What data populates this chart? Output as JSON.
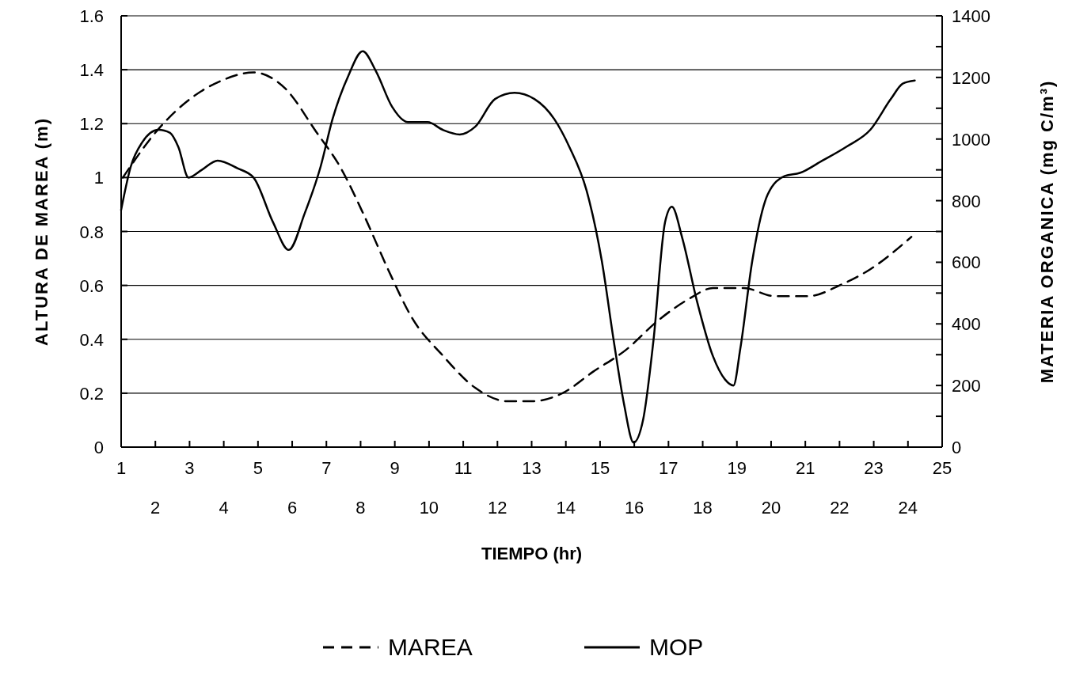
{
  "chart_data": {
    "type": "line",
    "xlabel": "TIEMPO (hr)",
    "ylabel": "ALTURA DE MAREA (m)",
    "y2label": "MATERIA ORGANICA (mg C/m³)",
    "xlim": [
      1,
      25
    ],
    "xticks": [
      1,
      {
        "value": 2,
        "label": null
      },
      3,
      {
        "value": 4,
        "label": null
      },
      5,
      {
        "value": 6,
        "label": null
      },
      7,
      {
        "value": 8,
        "label": null
      },
      9,
      {
        "value": 10,
        "label": null
      },
      11,
      {
        "value": 12,
        "label": null
      },
      13,
      {
        "value": 14,
        "label": null
      },
      15,
      {
        "value": 16,
        "label": null
      },
      17,
      {
        "value": 18,
        "label": null
      },
      19,
      {
        "value": 20,
        "label": null
      },
      21,
      {
        "value": 22,
        "label": null
      },
      23,
      {
        "value": 24,
        "label": null
      },
      25
    ],
    "x2lim": [
      1,
      25
    ],
    "x2ticks": [
      2,
      4,
      6,
      8,
      10,
      12,
      14,
      16,
      18,
      20,
      22,
      24
    ],
    "ylim": [
      0,
      1.6
    ],
    "yticks": [
      0,
      0.2,
      0.4,
      0.6,
      0.8,
      1,
      1.2,
      1.4,
      1.6
    ],
    "y2lim": [
      0,
      1400
    ],
    "y2ticks": [
      0,
      {
        "value": 100,
        "label": null
      },
      200,
      {
        "value": 300,
        "label": null
      },
      400,
      {
        "value": 500,
        "label": null
      },
      600,
      {
        "value": 700,
        "label": null
      },
      800,
      {
        "value": 900,
        "label": null
      },
      1000,
      {
        "value": 1100,
        "label": null
      },
      1200,
      {
        "value": 1300,
        "label": null
      },
      1400
    ],
    "grid": "y",
    "legend": "bottom",
    "series": [
      {
        "name": "MAREA",
        "color": "#000000",
        "line_style": "dashed",
        "x": [
          1.05,
          2.09,
          2.9,
          3.94,
          4.87,
          5.8,
          6.7,
          7.4,
          8.1,
          8.8,
          9.5,
          10.4,
          11.35,
          12.3,
          13,
          13.9,
          14.8,
          15.75,
          16.7,
          17.6,
          18.3,
          19.2,
          20.1,
          21.1,
          22,
          22.9,
          24.1
        ],
        "values": [
          1,
          1.18,
          1.28,
          1.36,
          1.39,
          1.33,
          1.17,
          1.04,
          0.86,
          0.66,
          0.48,
          0.34,
          0.22,
          0.17,
          0.17,
          0.2,
          0.28,
          0.36,
          0.47,
          0.55,
          0.59,
          0.59,
          0.56,
          0.56,
          0.6,
          0.66,
          0.78
        ]
      },
      {
        "name": "MOP",
        "color": "#000000",
        "line_style": "solid",
        "axis": "y2",
        "x": [
          1,
          1.28,
          1.62,
          2.09,
          2.43,
          2.67,
          2.97,
          3.36,
          3.82,
          4.4,
          4.87,
          5.44,
          5.9,
          6.37,
          6.83,
          7.18,
          7.64,
          8.06,
          8.45,
          8.92,
          9.38,
          9.96,
          10.4,
          10.9,
          11.35,
          11.93,
          12.5,
          13.08,
          13.66,
          14.1,
          14.6,
          15.05,
          15.4,
          15.7,
          15.98,
          16.26,
          16.56,
          16.9,
          17.1,
          17.4,
          17.83,
          18.3,
          18.65,
          18.9,
          19.1,
          19.45,
          19.9,
          20.4,
          20.84,
          21.5,
          22.2,
          22.9,
          23.5,
          23.85,
          24.2
        ],
        "values": [
          770,
          910,
          990,
          1030,
          1020,
          975,
          875,
          900,
          930,
          905,
          875,
          730,
          640,
          760,
          910,
          1065,
          1205,
          1285,
          1220,
          1105,
          1055,
          1055,
          1030,
          1015,
          1040,
          1130,
          1150,
          1130,
          1065,
          975,
          835,
          605,
          345,
          140,
          15,
          90,
          345,
          730,
          780,
          680,
          475,
          295,
          220,
          200,
          320,
          605,
          820,
          880,
          890,
          930,
          975,
          1030,
          1130,
          1180,
          1190
        ]
      }
    ]
  }
}
